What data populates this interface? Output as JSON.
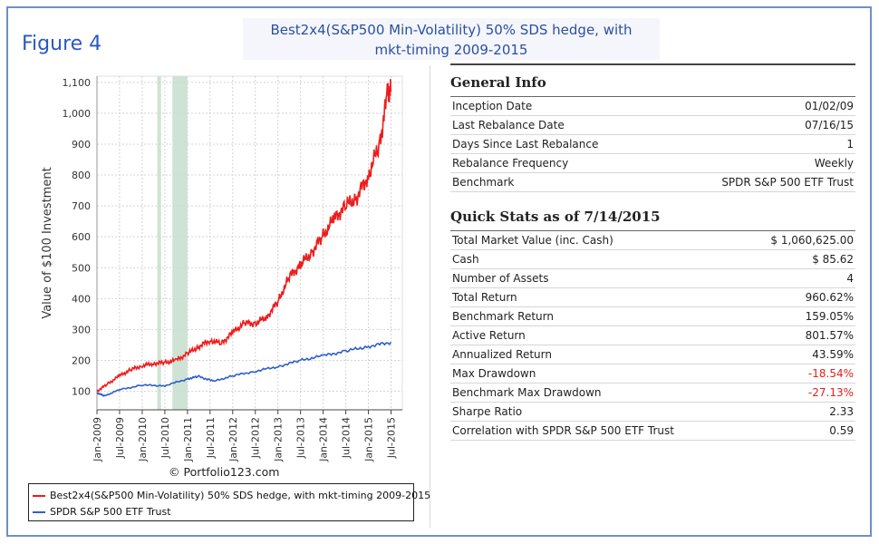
{
  "figure_label": "Figure 4",
  "title_line1": "Best2x4(S&P500 Min-Volatility) 50% SDS hedge, with",
  "title_line2": "mkt-timing 2009-2015",
  "credit": "© Portfolio123.com",
  "chart_data": {
    "type": "line",
    "ylabel": "Value of $100 Investment",
    "xlabel": "",
    "ylim": [
      40,
      1120
    ],
    "xlim": [
      "Jan-2009",
      "Sep-2015"
    ],
    "grid": true,
    "y_ticks": [
      "100",
      "200",
      "300",
      "400",
      "500",
      "600",
      "700",
      "800",
      "900",
      "1,000",
      "1,100"
    ],
    "y_tick_values": [
      100,
      200,
      300,
      400,
      500,
      600,
      700,
      800,
      900,
      1000,
      1100
    ],
    "x_ticks": [
      "Jan-2009",
      "Jul-2009",
      "Jan-2010",
      "Jul-2010",
      "Jan-2011",
      "Jul-2011",
      "Jan-2012",
      "Jul-2012",
      "Jan-2013",
      "Jul-2013",
      "Jan-2014",
      "Jul-2014",
      "Jan-2015",
      "Jul-2015"
    ],
    "shaded_periods": [
      [
        "2010-05",
        "2010-06"
      ],
      [
        "2010-09",
        "2011-01"
      ]
    ],
    "shade_color": "#cfe3d5",
    "legend_position": "bottom",
    "series": [
      {
        "name": "Best2x4(S&P500 Min-Volatility) 50% SDS hedge, with mkt-timing 2009-2015",
        "color": "#ee1c1c",
        "x": [
          "2009-01",
          "2009-04",
          "2009-07",
          "2009-10",
          "2010-01",
          "2010-04",
          "2010-07",
          "2010-10",
          "2011-01",
          "2011-04",
          "2011-07",
          "2011-10",
          "2012-01",
          "2012-04",
          "2012-07",
          "2012-10",
          "2013-01",
          "2013-04",
          "2013-07",
          "2013-10",
          "2014-01",
          "2014-04",
          "2014-07",
          "2014-10",
          "2015-01",
          "2015-04",
          "2015-06",
          "2015-07"
        ],
        "values": [
          100,
          125,
          150,
          170,
          183,
          190,
          193,
          200,
          222,
          245,
          265,
          255,
          290,
          320,
          320,
          340,
          390,
          470,
          510,
          550,
          605,
          660,
          700,
          730,
          800,
          900,
          1060,
          1070
        ]
      },
      {
        "name": "SPDR S&P 500 ETF Trust",
        "color": "#2e5fcc",
        "x": [
          "2009-01",
          "2009-03",
          "2009-07",
          "2010-01",
          "2010-07",
          "2011-01",
          "2011-04",
          "2011-08",
          "2012-01",
          "2012-07",
          "2013-01",
          "2013-07",
          "2014-01",
          "2014-07",
          "2015-01",
          "2015-07"
        ],
        "values": [
          95,
          85,
          105,
          120,
          118,
          140,
          148,
          132,
          150,
          165,
          180,
          200,
          215,
          230,
          245,
          259
        ]
      }
    ]
  },
  "general_info": {
    "title": "General Info",
    "rows": [
      {
        "label": "Inception Date",
        "value": "01/02/09"
      },
      {
        "label": "Last Rebalance Date",
        "value": "07/16/15"
      },
      {
        "label": "Days Since Last Rebalance",
        "value": "1"
      },
      {
        "label": "Rebalance Frequency",
        "value": "Weekly"
      },
      {
        "label": "Benchmark",
        "value": "SPDR S&P 500 ETF Trust"
      }
    ]
  },
  "quick_stats": {
    "title": "Quick Stats as of 7/14/2015",
    "rows": [
      {
        "label": "Total Market Value (inc. Cash)",
        "value": "$ 1,060,625.00"
      },
      {
        "label": "Cash",
        "value": "$ 85.62"
      },
      {
        "label": "Number of Assets",
        "value": "4"
      },
      {
        "label": "Total Return",
        "value": "960.62%"
      },
      {
        "label": "Benchmark Return",
        "value": "159.05%"
      },
      {
        "label": "Active Return",
        "value": "801.57%"
      },
      {
        "label": "Annualized Return",
        "value": "43.59%"
      },
      {
        "label": "Max Drawdown",
        "value": "-18.54%"
      },
      {
        "label": "Benchmark Max Drawdown",
        "value": "-27.13%"
      },
      {
        "label": "Sharpe Ratio",
        "value": "2.33"
      },
      {
        "label": "Correlation with SPDR S&P 500 ETF Trust",
        "value": "0.59"
      }
    ]
  }
}
